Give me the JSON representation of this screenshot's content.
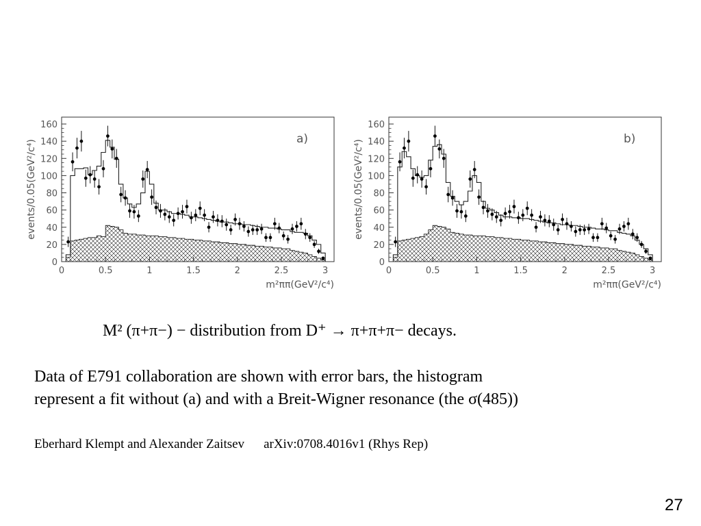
{
  "chart_data": [
    {
      "type": "bar",
      "panel_label": "a)",
      "ylabel": "events/0.05(GeV²/c⁴)",
      "xlabel": "m²ππ(GeV²/c⁴)",
      "xlim": [
        0,
        3.1
      ],
      "ylim": [
        0,
        168
      ],
      "xticks": [
        0,
        0.5,
        1,
        1.5,
        2,
        2.5,
        3
      ],
      "xtick_labels": [
        "0",
        "0.5",
        "1",
        "1.5",
        "2",
        "2.5",
        "3"
      ],
      "yticks": [
        0,
        20,
        40,
        60,
        80,
        100,
        120,
        140,
        160
      ],
      "ytick_labels": [
        "0",
        "20",
        "40",
        "60",
        "80",
        "100",
        "120",
        "140",
        "160"
      ],
      "grid": false,
      "series": [
        {
          "type": "scatter-errorbar",
          "x": [
            0.075,
            0.125,
            0.175,
            0.225,
            0.275,
            0.325,
            0.375,
            0.425,
            0.475,
            0.525,
            0.575,
            0.625,
            0.675,
            0.725,
            0.775,
            0.825,
            0.875,
            0.925,
            0.975,
            1.025,
            1.075,
            1.125,
            1.175,
            1.225,
            1.275,
            1.325,
            1.375,
            1.425,
            1.475,
            1.525,
            1.575,
            1.625,
            1.675,
            1.725,
            1.775,
            1.825,
            1.875,
            1.925,
            1.975,
            2.025,
            2.075,
            2.125,
            2.175,
            2.225,
            2.275,
            2.325,
            2.375,
            2.425,
            2.475,
            2.525,
            2.575,
            2.625,
            2.675,
            2.725,
            2.775,
            2.825,
            2.875,
            2.925,
            2.975
          ],
          "y": [
            23,
            116,
            132,
            140,
            97,
            101,
            96,
            87,
            108,
            146,
            131,
            120,
            78,
            74,
            59,
            58,
            53,
            96,
            107,
            75,
            63,
            59,
            55,
            52,
            48,
            56,
            58,
            64,
            51,
            54,
            62,
            54,
            40,
            52,
            48,
            47,
            43,
            37,
            49,
            44,
            41,
            35,
            37,
            37,
            38,
            28,
            28,
            44,
            39,
            30,
            26,
            38,
            41,
            44,
            32,
            28,
            20,
            12,
            4
          ],
          "err": [
            6,
            11,
            12,
            12,
            10,
            10,
            10,
            9,
            10,
            12,
            11,
            11,
            9,
            9,
            8,
            8,
            7,
            10,
            10,
            9,
            8,
            8,
            7,
            7,
            7,
            7,
            8,
            8,
            7,
            7,
            8,
            7,
            6,
            7,
            7,
            7,
            7,
            6,
            7,
            7,
            6,
            6,
            6,
            6,
            6,
            5,
            5,
            7,
            6,
            5,
            5,
            6,
            6,
            7,
            6,
            5,
            4,
            3,
            2
          ]
        },
        {
          "type": "step",
          "name_hidden": "fit",
          "x_edges": [
            0.05,
            0.1,
            0.15,
            0.2,
            0.25,
            0.3,
            0.35,
            0.4,
            0.45,
            0.5,
            0.55,
            0.6,
            0.65,
            0.7,
            0.75,
            0.8,
            0.85,
            0.9,
            0.95,
            1.0,
            1.05,
            1.1,
            1.15,
            1.2,
            1.25,
            1.3,
            1.35,
            1.4,
            1.45,
            1.5,
            1.55,
            1.6,
            1.65,
            1.7,
            1.75,
            1.8,
            1.85,
            1.9,
            1.95,
            2.0,
            2.05,
            2.1,
            2.15,
            2.2,
            2.25,
            2.3,
            2.35,
            2.4,
            2.45,
            2.5,
            2.55,
            2.6,
            2.65,
            2.7,
            2.75,
            2.8,
            2.85,
            2.9,
            2.95,
            3.0
          ],
          "values": [
            8,
            100,
            108,
            108,
            109,
            101,
            106,
            111,
            127,
            141,
            133,
            119,
            90,
            74,
            67,
            63,
            67,
            80,
            105,
            90,
            68,
            60,
            60,
            58,
            56,
            56,
            55,
            54,
            52,
            52,
            51,
            50,
            49,
            48,
            47,
            46,
            46,
            45,
            44,
            44,
            43,
            43,
            42,
            41,
            40,
            40,
            39,
            39,
            38,
            37,
            37,
            35,
            34,
            34,
            33,
            30,
            25,
            20,
            10
          ]
        },
        {
          "type": "hatched-step",
          "name_hidden": "background",
          "x_edges": [
            0.05,
            0.1,
            0.15,
            0.2,
            0.25,
            0.3,
            0.35,
            0.4,
            0.45,
            0.5,
            0.55,
            0.6,
            0.65,
            0.7,
            0.75,
            0.8,
            0.85,
            0.9,
            0.95,
            1.0,
            1.05,
            1.1,
            1.15,
            1.2,
            1.25,
            1.3,
            1.35,
            1.4,
            1.45,
            1.5,
            1.55,
            1.6,
            1.65,
            1.7,
            1.75,
            1.8,
            1.85,
            1.9,
            1.95,
            2.0,
            2.05,
            2.1,
            2.15,
            2.2,
            2.25,
            2.3,
            2.35,
            2.4,
            2.45,
            2.5,
            2.55,
            2.6,
            2.65,
            2.7,
            2.75,
            2.8,
            2.85,
            2.9,
            2.95,
            3.0
          ],
          "values": [
            5,
            24,
            25,
            26,
            27,
            28,
            28,
            30,
            29,
            42,
            41,
            40,
            37,
            33,
            32,
            32,
            31,
            31,
            30,
            30,
            30,
            29,
            29,
            28,
            28,
            27,
            27,
            26,
            26,
            25,
            25,
            24,
            24,
            23,
            23,
            22,
            22,
            21,
            21,
            20,
            20,
            19,
            19,
            18,
            18,
            17,
            17,
            16,
            16,
            15,
            15,
            13,
            12,
            11,
            10,
            8,
            6,
            4,
            2
          ]
        }
      ]
    },
    {
      "type": "bar",
      "panel_label": "b)",
      "ylabel": "events/0.05(GeV²/c⁴)",
      "xlabel": "m²ππ(GeV²/c⁴)",
      "xlim": [
        0,
        3.1
      ],
      "ylim": [
        0,
        168
      ],
      "xticks": [
        0,
        0.5,
        1,
        1.5,
        2,
        2.5,
        3
      ],
      "xtick_labels": [
        "0",
        "0.5",
        "1",
        "1.5",
        "2",
        "2.5",
        "3"
      ],
      "yticks": [
        0,
        20,
        40,
        60,
        80,
        100,
        120,
        140,
        160
      ],
      "ytick_labels": [
        "0",
        "20",
        "40",
        "60",
        "80",
        "100",
        "120",
        "140",
        "160"
      ],
      "grid": false,
      "series": [
        {
          "type": "scatter-errorbar",
          "x": [
            0.075,
            0.125,
            0.175,
            0.225,
            0.275,
            0.325,
            0.375,
            0.425,
            0.475,
            0.525,
            0.575,
            0.625,
            0.675,
            0.725,
            0.775,
            0.825,
            0.875,
            0.925,
            0.975,
            1.025,
            1.075,
            1.125,
            1.175,
            1.225,
            1.275,
            1.325,
            1.375,
            1.425,
            1.475,
            1.525,
            1.575,
            1.625,
            1.675,
            1.725,
            1.775,
            1.825,
            1.875,
            1.925,
            1.975,
            2.025,
            2.075,
            2.125,
            2.175,
            2.225,
            2.275,
            2.325,
            2.375,
            2.425,
            2.475,
            2.525,
            2.575,
            2.625,
            2.675,
            2.725,
            2.775,
            2.825,
            2.875,
            2.925,
            2.975
          ],
          "y": [
            23,
            116,
            132,
            140,
            97,
            101,
            96,
            87,
            108,
            146,
            131,
            120,
            78,
            74,
            59,
            58,
            53,
            96,
            107,
            75,
            63,
            59,
            55,
            52,
            48,
            56,
            58,
            64,
            51,
            54,
            62,
            54,
            40,
            52,
            48,
            47,
            43,
            37,
            49,
            44,
            41,
            35,
            37,
            37,
            38,
            28,
            28,
            44,
            39,
            30,
            26,
            38,
            41,
            44,
            32,
            28,
            20,
            12,
            4
          ],
          "err": [
            6,
            11,
            12,
            12,
            10,
            10,
            10,
            9,
            10,
            12,
            11,
            11,
            9,
            9,
            8,
            8,
            7,
            10,
            10,
            9,
            8,
            8,
            7,
            7,
            7,
            7,
            8,
            8,
            7,
            7,
            8,
            7,
            6,
            7,
            7,
            7,
            7,
            6,
            7,
            7,
            6,
            6,
            6,
            6,
            6,
            5,
            5,
            7,
            6,
            5,
            5,
            6,
            6,
            7,
            6,
            5,
            4,
            3,
            2
          ]
        },
        {
          "type": "step",
          "name_hidden": "fit",
          "x_edges": [
            0.05,
            0.1,
            0.15,
            0.2,
            0.25,
            0.3,
            0.35,
            0.4,
            0.45,
            0.5,
            0.55,
            0.6,
            0.65,
            0.7,
            0.75,
            0.8,
            0.85,
            0.9,
            0.95,
            1.0,
            1.05,
            1.1,
            1.15,
            1.2,
            1.25,
            1.3,
            1.35,
            1.4,
            1.45,
            1.5,
            1.55,
            1.6,
            1.65,
            1.7,
            1.75,
            1.8,
            1.85,
            1.9,
            1.95,
            2.0,
            2.05,
            2.1,
            2.15,
            2.2,
            2.25,
            2.3,
            2.35,
            2.4,
            2.45,
            2.5,
            2.55,
            2.6,
            2.65,
            2.7,
            2.75,
            2.8,
            2.85,
            2.9,
            2.95,
            3.0
          ],
          "values": [
            8,
            110,
            128,
            122,
            108,
            100,
            98,
            100,
            118,
            134,
            136,
            125,
            92,
            76,
            70,
            66,
            70,
            82,
            100,
            92,
            70,
            62,
            60,
            57,
            54,
            52,
            52,
            51,
            51,
            50,
            50,
            49,
            48,
            47,
            46,
            45,
            45,
            44,
            43,
            43,
            42,
            42,
            41,
            40,
            40,
            39,
            38,
            38,
            37,
            36,
            36,
            34,
            33,
            32,
            30,
            25,
            20,
            15,
            8
          ]
        },
        {
          "type": "hatched-step",
          "name_hidden": "background",
          "x_edges": [
            0.05,
            0.1,
            0.15,
            0.2,
            0.25,
            0.3,
            0.35,
            0.4,
            0.45,
            0.5,
            0.55,
            0.6,
            0.65,
            0.7,
            0.75,
            0.8,
            0.85,
            0.9,
            0.95,
            1.0,
            1.05,
            1.1,
            1.15,
            1.2,
            1.25,
            1.3,
            1.35,
            1.4,
            1.45,
            1.5,
            1.55,
            1.6,
            1.65,
            1.7,
            1.75,
            1.8,
            1.85,
            1.9,
            1.95,
            2.0,
            2.05,
            2.1,
            2.15,
            2.2,
            2.25,
            2.3,
            2.35,
            2.4,
            2.45,
            2.5,
            2.55,
            2.6,
            2.65,
            2.7,
            2.75,
            2.8,
            2.85,
            2.9,
            2.95,
            3.0
          ],
          "values": [
            5,
            24,
            25,
            26,
            27,
            28,
            29,
            32,
            37,
            42,
            41,
            40,
            38,
            34,
            33,
            32,
            31,
            31,
            30,
            30,
            30,
            29,
            29,
            28,
            28,
            27,
            27,
            26,
            26,
            25,
            25,
            24,
            24,
            23,
            23,
            22,
            22,
            21,
            21,
            20,
            20,
            19,
            19,
            18,
            18,
            17,
            17,
            16,
            16,
            15,
            15,
            13,
            12,
            11,
            10,
            8,
            6,
            4,
            2
          ]
        }
      ]
    }
  ],
  "text": {
    "caption": "M² (π+π−) − distribution from D⁺ → π+π+π− decays.",
    "description_line1": "Data of E791 collaboration are shown with error bars, the histogram",
    "description_line2": "represent a fit without (a) and with a Breit-Wigner resonance (the σ(485))",
    "citation_authors": "Eberhard Klempt  and Alexander Zaitsev",
    "citation_ref": "arXiv:0708.4016v1 (Rhys Rep)",
    "page_number": "27"
  }
}
